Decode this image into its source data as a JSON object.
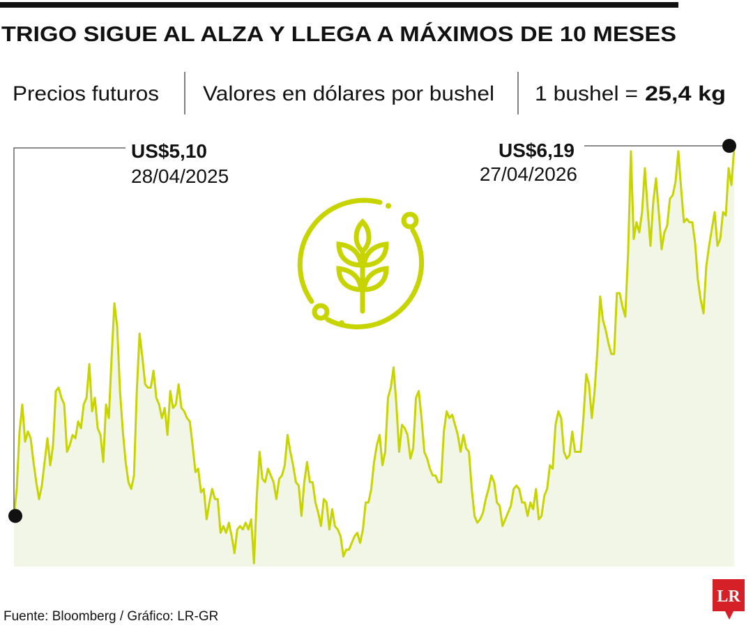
{
  "chart_data": {
    "type": "area",
    "title": "TRIGO SIGUE AL ALZA Y LLEGA A MÁXIMOS DE 10 MESES",
    "subtitle_parts": [
      "Precios futuros",
      "Valores en dólares por bushel"
    ],
    "unit_note": "1 bushel =",
    "unit_value": "25,4 kg",
    "source": "Fuente: Bloomberg / Gráfico: LR-GR",
    "logo": "LR",
    "color": "#c8d400",
    "area_color": "#f1f6e6",
    "ylim": [
      4.95,
      6.19
    ],
    "annotations": [
      {
        "label": "US$5,10",
        "date": "28/04/2025",
        "value": 5.1
      },
      {
        "label": "US$6,19",
        "date": "27/04/2026",
        "value": 6.19
      }
    ],
    "values": [
      5.1,
      5.18,
      5.35,
      5.43,
      5.32,
      5.35,
      5.33,
      5.26,
      5.2,
      5.15,
      5.19,
      5.26,
      5.33,
      5.25,
      5.31,
      5.47,
      5.48,
      5.45,
      5.43,
      5.29,
      5.31,
      5.34,
      5.33,
      5.38,
      5.36,
      5.43,
      5.45,
      5.55,
      5.41,
      5.45,
      5.36,
      5.34,
      5.26,
      5.43,
      5.39,
      5.57,
      5.73,
      5.66,
      5.47,
      5.35,
      5.26,
      5.2,
      5.18,
      5.22,
      5.47,
      5.64,
      5.57,
      5.49,
      5.48,
      5.48,
      5.53,
      5.45,
      5.43,
      5.39,
      5.42,
      5.34,
      5.47,
      5.42,
      5.43,
      5.49,
      5.42,
      5.41,
      5.39,
      5.38,
      5.31,
      5.23,
      5.24,
      5.17,
      5.18,
      5.09,
      5.14,
      5.18,
      5.15,
      5.15,
      5.05,
      5.07,
      5.05,
      5.08,
      5.04,
      4.99,
      5.06,
      5.07,
      5.06,
      5.08,
      5.06,
      5.09,
      4.96,
      5.16,
      5.29,
      5.21,
      5.2,
      5.24,
      5.22,
      5.2,
      5.15,
      5.21,
      5.22,
      5.25,
      5.34,
      5.29,
      5.25,
      5.2,
      5.19,
      5.1,
      5.2,
      5.26,
      5.2,
      5.2,
      5.14,
      5.11,
      5.07,
      5.15,
      5.14,
      5.06,
      5.12,
      5.07,
      5.06,
      5.04,
      4.98,
      5.0,
      5.0,
      5.02,
      5.04,
      5.05,
      5.02,
      5.06,
      5.14,
      5.14,
      5.18,
      5.26,
      5.31,
      5.34,
      5.25,
      5.29,
      5.45,
      5.48,
      5.54,
      5.43,
      5.29,
      5.37,
      5.36,
      5.34,
      5.27,
      5.3,
      5.45,
      5.47,
      5.39,
      5.29,
      5.27,
      5.24,
      5.22,
      5.22,
      5.2,
      5.2,
      5.35,
      5.41,
      5.39,
      5.4,
      5.37,
      5.34,
      5.29,
      5.34,
      5.3,
      5.29,
      5.18,
      5.1,
      5.08,
      5.09,
      5.11,
      5.15,
      5.18,
      5.22,
      5.2,
      5.14,
      5.13,
      5.07,
      5.09,
      5.11,
      5.13,
      5.18,
      5.19,
      5.18,
      5.14,
      5.14,
      5.1,
      5.14,
      5.12,
      5.18,
      5.09,
      5.1,
      5.16,
      5.18,
      5.25,
      5.24,
      5.37,
      5.41,
      5.39,
      5.29,
      5.27,
      5.28,
      5.35,
      5.29,
      5.29,
      5.29,
      5.39,
      5.52,
      5.49,
      5.39,
      5.47,
      5.59,
      5.75,
      5.68,
      5.65,
      5.61,
      5.58,
      5.58,
      5.76,
      5.76,
      5.72,
      5.69,
      5.88,
      6.18,
      5.92,
      5.97,
      5.94,
      6.0,
      6.13,
      6.01,
      5.9,
      6.03,
      6.1,
      6.0,
      5.89,
      5.94,
      5.96,
      6.04,
      6.05,
      6.09,
      6.18,
      6.07,
      5.97,
      5.98,
      5.97,
      5.97,
      5.91,
      5.8,
      5.74,
      5.7,
      5.84,
      5.9,
      5.95,
      6.0,
      5.9,
      5.92,
      6.0,
      5.99,
      6.13,
      6.08,
      6.19
    ]
  }
}
